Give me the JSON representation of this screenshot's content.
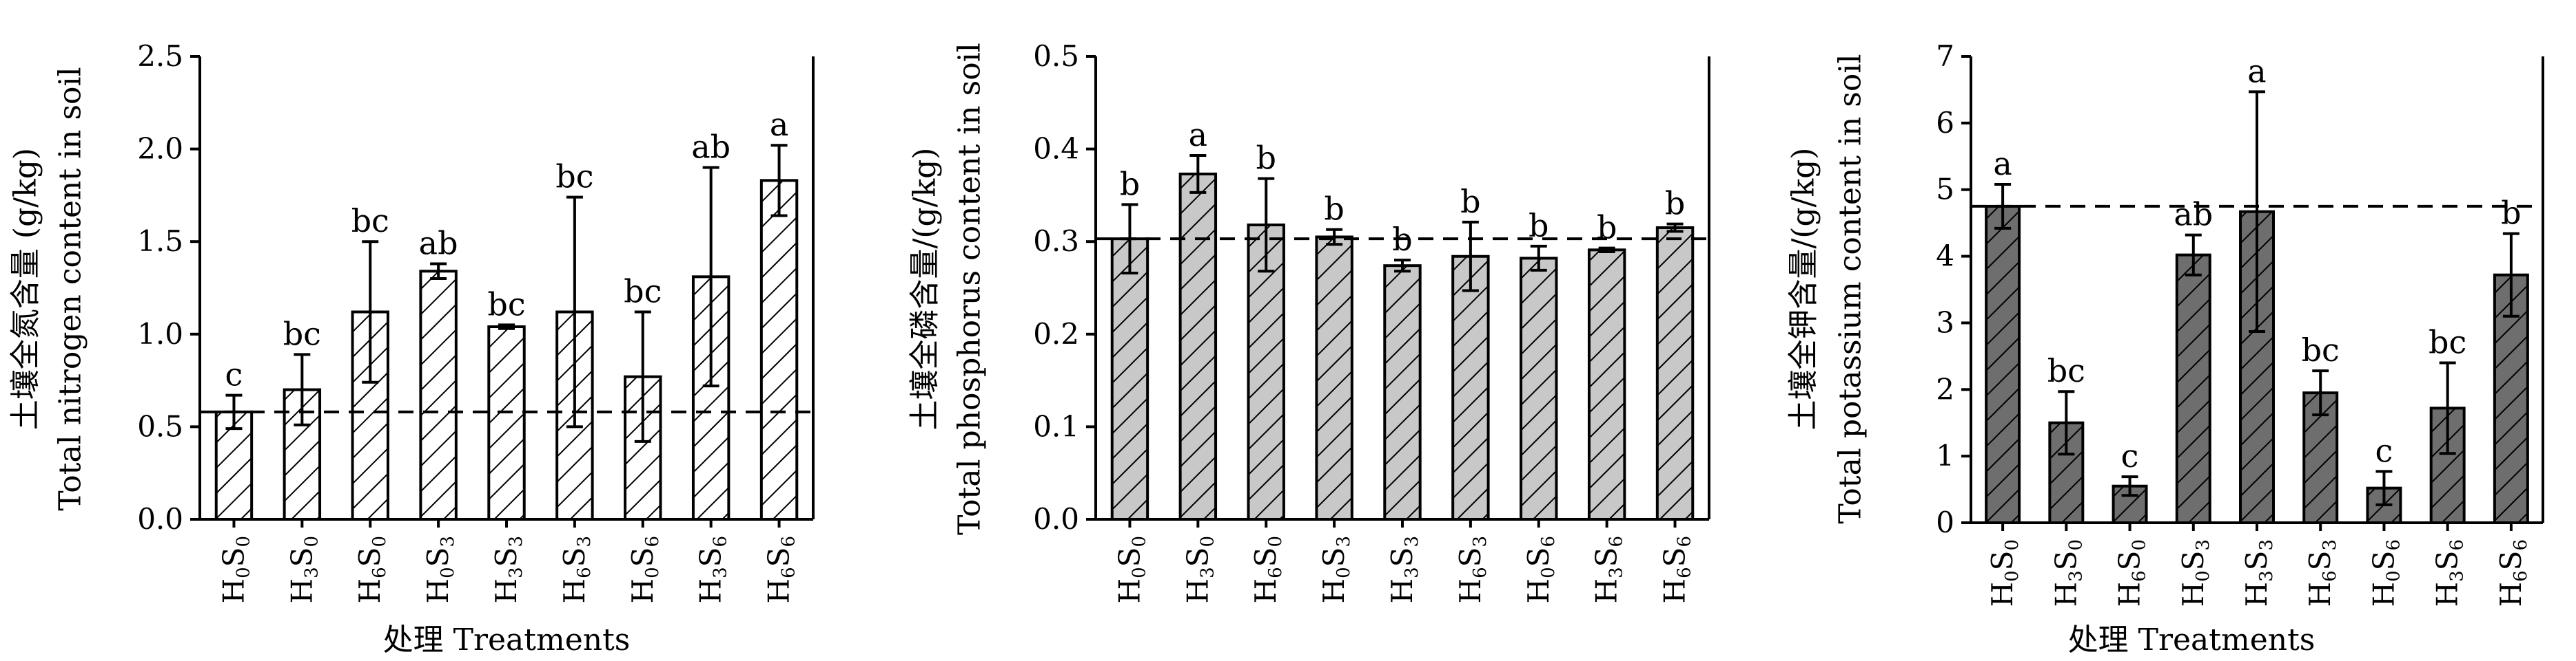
{
  "chart_data": [
    {
      "type": "bar",
      "ylabel_zh": "土壤全氮含量 (g/kg)",
      "ylabel_en": "Total nitrogen content in soil",
      "xlabel": "处理 Treatments",
      "categories": [
        "H0S0",
        "H3S0",
        "H6S0",
        "H0S3",
        "H3S3",
        "H6S3",
        "H0S6",
        "H3S6",
        "H6S6"
      ],
      "category_main": [
        "H",
        "H",
        "H",
        "H",
        "H",
        "H",
        "H",
        "H",
        "H"
      ],
      "values": [
        0.58,
        0.7,
        1.12,
        1.34,
        1.04,
        1.12,
        0.77,
        1.31,
        1.83
      ],
      "errors": [
        0.09,
        0.19,
        0.38,
        0.04,
        0.01,
        0.62,
        0.35,
        0.59,
        0.19
      ],
      "letters": [
        "c",
        "bc",
        "bc",
        "ab",
        "bc",
        "bc",
        "bc",
        "ab",
        "a"
      ],
      "reference_line": 0.58,
      "ylim": [
        0,
        2.5
      ],
      "yticks": [
        "0.0",
        "0.5",
        "1.0",
        "1.5",
        "2.0",
        "2.5"
      ],
      "bar_fill": "#ffffff",
      "hatch": "diagonal"
    },
    {
      "type": "bar",
      "ylabel_zh": "土壤全磷含量/(g/kg)",
      "ylabel_en": "Total phosphorus content in soil",
      "xlabel": "",
      "categories": [
        "H0S0",
        "H3S0",
        "H6S0",
        "H0S3",
        "H3S3",
        "H6S3",
        "H0S6",
        "H3S6",
        "H6S6"
      ],
      "category_main": [
        "H",
        "H",
        "H",
        "H",
        "H",
        "H",
        "H",
        "H",
        "H"
      ],
      "values": [
        0.303,
        0.373,
        0.318,
        0.305,
        0.274,
        0.284,
        0.282,
        0.291,
        0.315
      ],
      "errors": [
        0.037,
        0.02,
        0.05,
        0.008,
        0.006,
        0.037,
        0.013,
        0.002,
        0.004
      ],
      "letters": [
        "b",
        "a",
        "b",
        "b",
        "b",
        "b",
        "b",
        "b",
        "b"
      ],
      "reference_line": 0.303,
      "ylim": [
        0,
        0.5
      ],
      "yticks": [
        "0.0",
        "0.1",
        "0.2",
        "0.3",
        "0.4",
        "0.5"
      ],
      "bar_fill": "#c8c8c8",
      "hatch": "diagonal"
    },
    {
      "type": "bar",
      "ylabel_zh": "土壤全钾含量/(g/kg)",
      "ylabel_en": "Total potassium content in soil",
      "xlabel": "处理 Treatments",
      "categories": [
        "H0S0",
        "H3S0",
        "H6S0",
        "H0S3",
        "H3S3",
        "H6S3",
        "H0S6",
        "H3S6",
        "H6S6"
      ],
      "category_main": [
        "H",
        "H",
        "H",
        "H",
        "H",
        "H",
        "H",
        "H",
        "H"
      ],
      "values": [
        4.75,
        1.5,
        0.55,
        4.02,
        4.67,
        1.95,
        0.52,
        1.72,
        3.72
      ],
      "errors": [
        0.33,
        0.47,
        0.14,
        0.3,
        1.8,
        0.33,
        0.25,
        0.68,
        0.62
      ],
      "letters": [
        "a",
        "bc",
        "c",
        "ab",
        "a",
        "bc",
        "c",
        "bc",
        "b"
      ],
      "reference_line": 4.75,
      "ylim": [
        0,
        7
      ],
      "yticks": [
        "0",
        "1",
        "2",
        "3",
        "4",
        "5",
        "6",
        "7"
      ],
      "bar_fill": "#6e6e6e",
      "hatch": "diagonal"
    }
  ]
}
